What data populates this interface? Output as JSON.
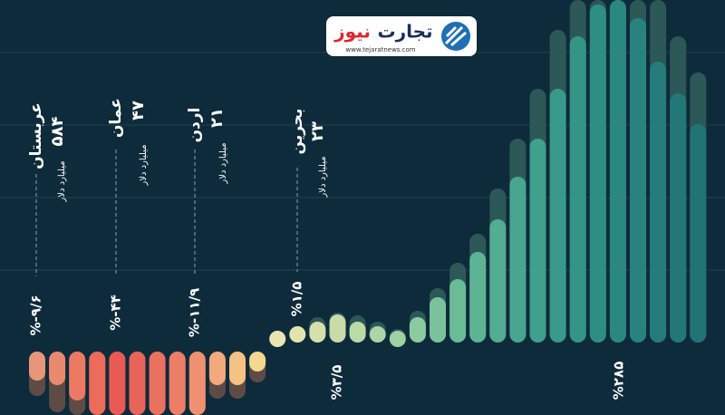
{
  "logo": {
    "name1": "تجارت",
    "name2": "نیوز",
    "url": "www.tejaratnews.com"
  },
  "chart_data": {
    "type": "bar",
    "ylim": [
      -78,
      380
    ],
    "series": [
      {
        "values": [
          -40,
          -45,
          -62,
          -78,
          -78,
          -78,
          -78,
          -78,
          -78,
          -45,
          -45,
          -30,
          15,
          20,
          25,
          33,
          25,
          20,
          15,
          30,
          52,
          72,
          102,
          138,
          185,
          227,
          282,
          340,
          375,
          380,
          360,
          312,
          277,
          243
        ],
        "colors": [
          "#e8967a",
          "#e98a6f",
          "#ec7a63",
          "#ec6b5b",
          "#e95a55",
          "#e86458",
          "#ea7060",
          "#ec7d66",
          "#ef9070",
          "#f2aa7c",
          "#f4c285",
          "#f3d890",
          "#eae6b0",
          "#e2e4ae",
          "#d6e0aa",
          "#c8dba8",
          "#badaa6",
          "#acd4a4",
          "#9fd0a2",
          "#8ccaa0",
          "#7ac29c",
          "#6abb98",
          "#5cb495",
          "#52ad92",
          "#48a68f",
          "#40a08c",
          "#3a9a89",
          "#349486",
          "#2f8e83",
          "#2b8880",
          "#28827d",
          "#257c7a",
          "#237877",
          "#217474"
        ]
      },
      {
        "values": [
          -57,
          -75,
          -78,
          -78,
          -78,
          -78,
          -78,
          -78,
          -78,
          -60,
          -60,
          -42,
          15,
          20,
          30,
          35,
          32,
          25,
          17,
          37,
          62,
          90,
          122,
          172,
          227,
          282,
          347,
          380,
          380,
          380,
          380,
          380,
          340,
          300
        ],
        "colors": [
          "#5e4b45",
          "#5e4b45",
          "#5e4b45",
          "#5e4b45",
          "#5e4b45",
          "#5e4b45",
          "#5e4b45",
          "#5e4b45",
          "#5e4b45",
          "#5e4b45",
          "#5e4b45",
          "#5e4b45",
          "#2c5858",
          "#2c5858",
          "#2c5858",
          "#2c5858",
          "#2c5858",
          "#2c5858",
          "#2c5858",
          "#2c5858",
          "#2c5858",
          "#2c5858",
          "#2c5858",
          "#2c5858",
          "#2c5858",
          "#2c5858",
          "#2c5858",
          "#2c5858",
          "#2c5858",
          "#2c5858",
          "#2c5858",
          "#2c5858",
          "#2c5858",
          "#2c5858"
        ]
      }
    ],
    "annotations": [
      {
        "name": "عربستان",
        "amount": "۵۸۴",
        "unit": "میلیارد دلار",
        "percent": "%-۹/۶"
      },
      {
        "name": "عمان",
        "amount": "۴۷",
        "unit": "میلیارد دلار",
        "percent": "%-۴۴"
      },
      {
        "name": "اردن",
        "amount": "۲۱",
        "unit": "میلیارد دلار",
        "percent": "%-۱۱/۹"
      },
      {
        "name": "بحرین",
        "amount": "۲۳",
        "unit": "میلیارد دلار",
        "percent": "%۱/۵"
      },
      {
        "percent": "%۳/۵"
      },
      {
        "percent": "%۲۸۵"
      }
    ]
  }
}
